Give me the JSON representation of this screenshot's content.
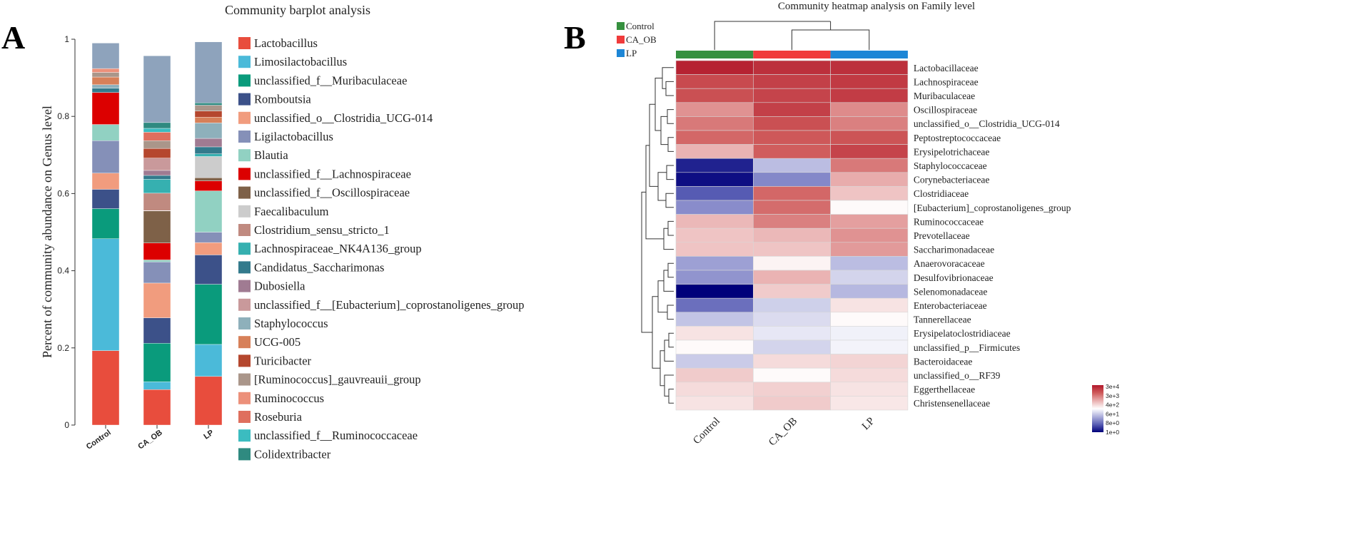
{
  "panel_a_letter": "A",
  "panel_b_letter": "B",
  "chart_data": [
    {
      "type": "stacked_bar",
      "title": "Community barplot analysis",
      "xlabel": "",
      "ylabel": "Percent of community abundance on Genus level",
      "ylim": [
        0,
        1
      ],
      "yticks": [
        "0",
        "0.2",
        "0.4",
        "0.6",
        "0.8",
        "1"
      ],
      "categories": [
        "Control",
        "CA_OB",
        "LP"
      ],
      "series": [
        {
          "name": "Lactobacillus",
          "color": "#e84d3d",
          "values": [
            0.193,
            0.092,
            0.126
          ]
        },
        {
          "name": "Limosilactobacillus",
          "color": "#4bbad9",
          "values": [
            0.29,
            0.02,
            0.083
          ]
        },
        {
          "name": "unclassified_f__Muribaculaceae",
          "color": "#0a9b7c",
          "values": [
            0.078,
            0.1,
            0.156
          ]
        },
        {
          "name": "Romboutsia",
          "color": "#3c5189",
          "values": [
            0.05,
            0.066,
            0.076
          ]
        },
        {
          "name": "unclassified_o__Clostridia_UCG-014",
          "color": "#f19c7e",
          "values": [
            0.042,
            0.09,
            0.032
          ]
        },
        {
          "name": "Ligilactobacillus",
          "color": "#8590b8",
          "values": [
            0.084,
            0.055,
            0.027
          ]
        },
        {
          "name": "Blautia",
          "color": "#91d1c2",
          "values": [
            0.042,
            0.005,
            0.107
          ]
        },
        {
          "name": "unclassified_f__Lachnospiraceae",
          "color": "#dc0000",
          "values": [
            0.083,
            0.044,
            0.026
          ]
        },
        {
          "name": "unclassified_f__Oscillospiraceae",
          "color": "#7e6148",
          "values": [
            0.0,
            0.083,
            0.008
          ]
        },
        {
          "name": "Faecalibaculum",
          "color": "#cccccc",
          "values": [
            0.0,
            0.001,
            0.055
          ]
        },
        {
          "name": "Clostridium_sensu_stricto_1",
          "color": "#c08a80",
          "values": [
            0.0,
            0.045,
            0.0
          ]
        },
        {
          "name": "Lachnospiraceae_NK4A136_group",
          "color": "#36b0b0",
          "values": [
            0.0,
            0.036,
            0.007
          ]
        },
        {
          "name": "Candidatus_Saccharimonas",
          "color": "#337a8c",
          "values": [
            0.011,
            0.01,
            0.018
          ]
        },
        {
          "name": "Dubosiella",
          "color": "#a07b92",
          "values": [
            0.0,
            0.013,
            0.022
          ]
        },
        {
          "name": "unclassified_f__[Eubacterium]_coprostanoligenes_group",
          "color": "#c9999b",
          "values": [
            0.0,
            0.032,
            0.0
          ]
        },
        {
          "name": "Staphylococcus",
          "color": "#8eb0bb",
          "values": [
            0.009,
            0.0,
            0.04
          ]
        },
        {
          "name": "UCG-005",
          "color": "#d78059",
          "values": [
            0.02,
            0.0,
            0.015
          ]
        },
        {
          "name": "Turicibacter",
          "color": "#b5472e",
          "values": [
            0.0,
            0.025,
            0.016
          ]
        },
        {
          "name": "[Ruminococcus]_gauvreauii_group",
          "color": "#aa968a",
          "values": [
            0.012,
            0.02,
            0.015
          ]
        },
        {
          "name": "Ruminococcus",
          "color": "#ec907a",
          "values": [
            0.01,
            0.0,
            0.0
          ]
        },
        {
          "name": "Roseburia",
          "color": "#df6f5e",
          "values": [
            0.0,
            0.022,
            0.0
          ]
        },
        {
          "name": "unclassified_f__Ruminococcaceae",
          "color": "#3bbcc0",
          "values": [
            0.0,
            0.01,
            0.0
          ]
        },
        {
          "name": "Colidextribacter",
          "color": "#2f8a80",
          "values": [
            0.0,
            0.015,
            0.006
          ]
        },
        {
          "name": "Others",
          "color": "#8ea3bc",
          "values": [
            0.066,
            0.173,
            0.158
          ],
          "in_legend": false
        }
      ]
    },
    {
      "type": "heatmap",
      "title": "Community heatmap analysis on Family level",
      "columns": [
        "Control",
        "CA_OB",
        "LP"
      ],
      "group_legend": [
        {
          "name": "Control",
          "color": "#35903f"
        },
        {
          "name": "CA_OB",
          "color": "#f03b3b"
        },
        {
          "name": "LP",
          "color": "#1d86d6"
        }
      ],
      "rows": [
        "Lactobacillaceae",
        "Lachnospiraceae",
        "Muribaculaceae",
        "Oscillospiraceae",
        "unclassified_o__Clostridia_UCG-014",
        "Peptostreptococcaceae",
        "Erysipelotrichaceae",
        "Staphylococcaceae",
        "Corynebacteriaceae",
        "Clostridiaceae",
        "[Eubacterium]_coprostanoligenes_group",
        "Ruminococcaceae",
        "Prevotellaceae",
        "Saccharimonadaceae",
        "Anaerovoracaceae",
        "Desulfovibrionaceae",
        "Selenomonadaceae",
        "Enterobacteriaceae",
        "Tannerellaceae",
        "Erysipelatoclostridiaceae",
        "unclassified_p__Firmicutes",
        "Bacteroidaceae",
        "unclassified_o__RF39",
        "Eggerthellaceae",
        "Christensenellaceae"
      ],
      "color_scale": {
        "stops": [
          "#b2182b",
          "#cf5b5b",
          "#e9b0b0",
          "#ffffff",
          "#aeb0dc",
          "#5a5fb5",
          "#00007a"
        ],
        "tick_labels": [
          "3e+4",
          "3e+3",
          "4e+2",
          "6e+1",
          "8e+0",
          "1e+0"
        ]
      },
      "values": [
        [
          0.95,
          0.88,
          0.88
        ],
        [
          0.75,
          0.8,
          0.83
        ],
        [
          0.72,
          0.78,
          0.82
        ],
        [
          0.45,
          0.8,
          0.48
        ],
        [
          0.55,
          0.72,
          0.52
        ],
        [
          0.62,
          0.68,
          0.7
        ],
        [
          0.32,
          0.66,
          0.78
        ],
        [
          -0.88,
          -0.28,
          0.55
        ],
        [
          -0.95,
          -0.5,
          0.35
        ],
        [
          -0.68,
          0.62,
          0.25
        ],
        [
          -0.48,
          0.6,
          0.02
        ],
        [
          0.3,
          0.52,
          0.4
        ],
        [
          0.25,
          0.3,
          0.45
        ],
        [
          0.25,
          0.25,
          0.42
        ],
        [
          -0.4,
          0.05,
          -0.28
        ],
        [
          -0.45,
          0.32,
          -0.18
        ],
        [
          -1.0,
          0.22,
          -0.3
        ],
        [
          -0.6,
          -0.2,
          0.12
        ],
        [
          -0.25,
          -0.15,
          0.02
        ],
        [
          0.12,
          -0.1,
          -0.06
        ],
        [
          0.02,
          -0.18,
          -0.05
        ],
        [
          -0.22,
          0.15,
          0.18
        ],
        [
          0.22,
          0.02,
          0.15
        ],
        [
          0.15,
          0.2,
          0.12
        ],
        [
          0.12,
          0.22,
          0.1
        ]
      ]
    }
  ]
}
